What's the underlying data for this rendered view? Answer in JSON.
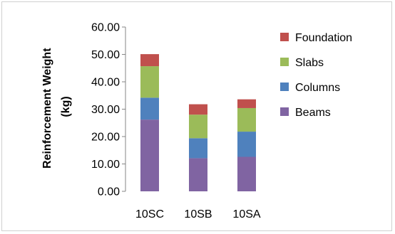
{
  "chart_data": {
    "type": "bar",
    "stacked": true,
    "categories": [
      "10SC",
      "10SB",
      "10SA"
    ],
    "series": [
      {
        "name": "Beams",
        "color": "#8064A2",
        "values": [
          26.2,
          12.1,
          12.6
        ]
      },
      {
        "name": "Columns",
        "color": "#4F81BD",
        "values": [
          8.0,
          7.3,
          9.2
        ]
      },
      {
        "name": "Slabs",
        "color": "#9BBB59",
        "values": [
          11.5,
          8.6,
          8.6
        ]
      },
      {
        "name": "Foundation",
        "color": "#C0504D",
        "values": [
          4.4,
          3.8,
          3.2
        ]
      }
    ],
    "legend_order": [
      "Foundation",
      "Slabs",
      "Columns",
      "Beams"
    ],
    "legend_position": "right",
    "ylabel_line1": "Reinforcement Weight",
    "ylabel_line2": "(kg)",
    "ylim": [
      0,
      60
    ],
    "yticks": [
      "0.00",
      "10.00",
      "20.00",
      "30.00",
      "40.00",
      "50.00",
      "60.00"
    ],
    "grid": false
  }
}
